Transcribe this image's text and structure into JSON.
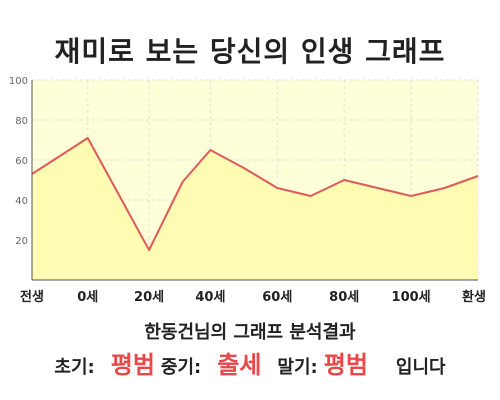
{
  "title": "재미로 보는 당신의 인생 그래프",
  "subtitle": "한동건님의 그래프 분석결과",
  "result": {
    "early_label": "초기:",
    "early_value": "평범",
    "mid_label": "중기:",
    "mid_value": "출세",
    "late_label": "말기:",
    "late_value": "평범",
    "ending": "입니다"
  },
  "colors": {
    "plot_bg": "#fefed8",
    "area_fill": "#fdfcb2",
    "line": "#e05a5a",
    "grid": "#e0e0e0",
    "axis": "#555555",
    "highlight": "#e84848"
  },
  "chart_data": {
    "type": "area",
    "title": "재미로 보는 당신의 인생 그래프",
    "xlabel": "",
    "ylabel": "",
    "x": [
      -10,
      0,
      11,
      17,
      22,
      28,
      34,
      40,
      46,
      52,
      58,
      64,
      70
    ],
    "y": [
      53,
      71,
      15,
      49,
      65,
      56,
      46,
      42,
      50,
      46,
      42,
      46,
      52
    ],
    "xlim": [
      -10,
      70
    ],
    "ylim": [
      0,
      100
    ],
    "yticks": [
      20,
      40,
      60,
      80,
      100
    ],
    "xtick_labels": [
      "전생",
      "0세",
      "20세",
      "40세",
      "60세",
      "80세",
      "100세",
      "환생"
    ],
    "xtick_positions": [
      -10,
      0,
      11,
      22,
      34,
      46,
      58,
      70
    ],
    "grid": true,
    "legend": "none"
  }
}
